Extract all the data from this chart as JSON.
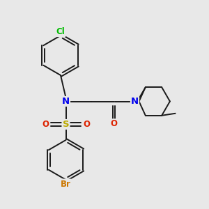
{
  "background_color": "#e8e8e8",
  "bond_color": "#1a1a1a",
  "atom_colors": {
    "Cl": "#00bb00",
    "N": "#0000ee",
    "S": "#bbaa00",
    "O": "#dd2200",
    "Br": "#cc7700"
  },
  "lw": 1.4,
  "fs": 8.5,
  "xlim": [
    0,
    10
  ],
  "ylim": [
    0,
    10
  ]
}
